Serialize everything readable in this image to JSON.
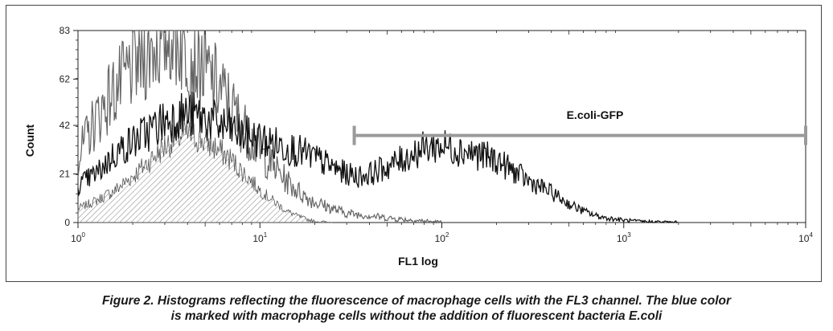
{
  "chart_data": {
    "type": "area",
    "xlabel": "FL1 log",
    "ylabel": "Count",
    "xscale": "log",
    "xlim": [
      1,
      10000
    ],
    "ylim": [
      0,
      83
    ],
    "x_ticks": [
      {
        "value": 1,
        "base": "10",
        "exp": "0"
      },
      {
        "value": 10,
        "base": "10",
        "exp": "1"
      },
      {
        "value": 100,
        "base": "10",
        "exp": "2"
      },
      {
        "value": 1000,
        "base": "10",
        "exp": "3"
      },
      {
        "value": 10000,
        "base": "10",
        "exp": "4"
      }
    ],
    "y_ticks": [
      "0",
      "21",
      "42",
      "62",
      "83"
    ],
    "gate": {
      "label": "E.coli-GFP",
      "x_start": 33,
      "x_end": 10000,
      "y": 38
    },
    "series": [
      {
        "style": "hatched-fill",
        "color": "#555555",
        "x": [
          1,
          1.3,
          1.6,
          2,
          2.5,
          3,
          3.5,
          4,
          4.5,
          5,
          5.5,
          6,
          7,
          8,
          9,
          10,
          12,
          14,
          16,
          18,
          20,
          25
        ],
        "values": [
          6,
          10,
          14,
          20,
          27,
          33,
          37,
          38,
          37,
          35,
          33,
          31,
          27,
          22,
          18,
          14,
          9,
          5,
          3,
          1.5,
          0.5,
          0
        ]
      },
      {
        "style": "line",
        "color": "#666666",
        "x": [
          1,
          1.2,
          1.5,
          1.8,
          2,
          2.3,
          2.6,
          3,
          3.3,
          3.6,
          4,
          4.5,
          5,
          5.5,
          6,
          7,
          8,
          9,
          10,
          12,
          14,
          16,
          18,
          20,
          25,
          30,
          40,
          50,
          70,
          100
        ],
        "values": [
          28,
          42,
          55,
          62,
          68,
          72,
          76,
          80,
          82,
          78,
          74,
          70,
          66,
          62,
          58,
          50,
          42,
          36,
          30,
          24,
          18,
          14,
          11,
          9,
          6,
          4,
          3,
          2,
          1,
          0
        ]
      },
      {
        "style": "line",
        "color": "#111111",
        "x": [
          1,
          1.3,
          1.6,
          2,
          2.5,
          3,
          3.5,
          4,
          5,
          6,
          7,
          8,
          10,
          12,
          15,
          20,
          25,
          30,
          35,
          40,
          50,
          60,
          70,
          80,
          90,
          100,
          120,
          150,
          200,
          250,
          300,
          400,
          500,
          600,
          700,
          800,
          1000,
          1200,
          1500,
          2000
        ],
        "values": [
          16,
          22,
          30,
          35,
          40,
          44,
          46,
          47,
          45,
          42,
          40,
          38,
          36,
          34,
          32,
          28,
          24,
          21,
          20,
          21,
          24,
          27,
          30,
          32,
          33,
          33,
          32,
          30,
          27,
          22,
          18,
          13,
          8,
          5,
          3,
          2,
          1,
          0.5,
          0.3,
          0
        ]
      }
    ]
  },
  "caption": {
    "line1": "Figure 2. Histograms reflecting the fluorescence of macrophage cells with the FL3 channel. The blue color",
    "line2": "is marked with macrophage cells without the addition of fluorescent bacteria E.coli"
  }
}
